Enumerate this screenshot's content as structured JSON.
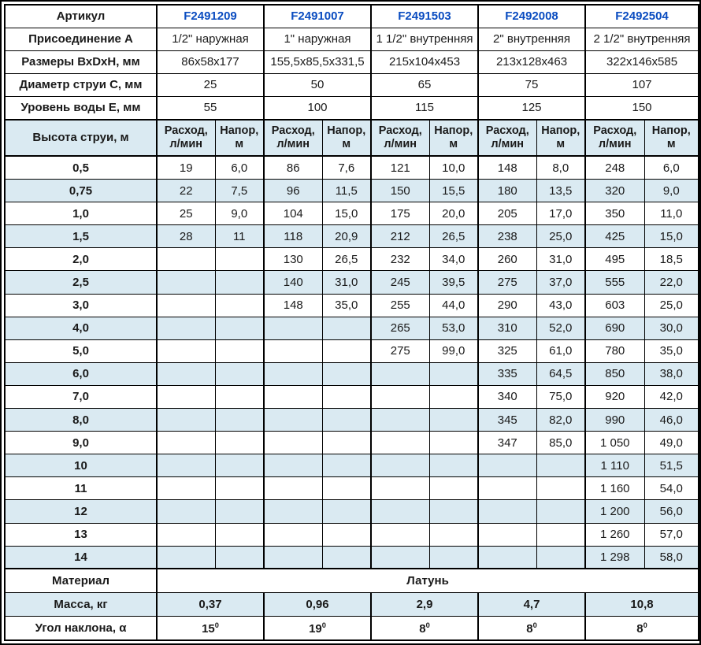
{
  "colors": {
    "accent_blue": "#0a4cc0",
    "row_alt_blue": "#daeaf2",
    "border_black": "#000000"
  },
  "table": {
    "info_rows": [
      {
        "name": "article",
        "label": "Артикул",
        "type": "article",
        "values": [
          "F2491209",
          "F2491007",
          "F2491503",
          "F2492008",
          "F2492504"
        ]
      },
      {
        "name": "connection",
        "label": "Присоединение А",
        "type": "plain",
        "values": [
          "1/2\" наружная",
          "1\" наружная",
          "1 1/2\" внутренняя",
          "2\" внутренняя",
          "2 1/2\" внутренняя"
        ]
      },
      {
        "name": "dimensions",
        "label": "Размеры ВхDхН, мм",
        "type": "plain",
        "values": [
          "86x58x177",
          "155,5x85,5x331,5",
          "215x104x453",
          "213x128x463",
          "322x146x585"
        ]
      },
      {
        "name": "jet-diameter",
        "label": "Диаметр струи С, мм",
        "type": "plain",
        "values": [
          "25",
          "50",
          "65",
          "75",
          "107"
        ]
      },
      {
        "name": "water-level",
        "label": "Уровень воды Е, мм",
        "type": "plain",
        "values": [
          "55",
          "100",
          "115",
          "125",
          "150"
        ]
      }
    ],
    "jet_header": {
      "label": "Высота струи, м",
      "col_flow": "Расход,\nл/мин",
      "col_head": "Напор,\nм"
    },
    "jet_rows": [
      {
        "h": "0,5",
        "c": [
          "19",
          "6,0",
          "86",
          "7,6",
          "121",
          "10,0",
          "148",
          "8,0",
          "248",
          "6,0"
        ]
      },
      {
        "h": "0,75",
        "c": [
          "22",
          "7,5",
          "96",
          "11,5",
          "150",
          "15,5",
          "180",
          "13,5",
          "320",
          "9,0"
        ]
      },
      {
        "h": "1,0",
        "c": [
          "25",
          "9,0",
          "104",
          "15,0",
          "175",
          "20,0",
          "205",
          "17,0",
          "350",
          "11,0"
        ]
      },
      {
        "h": "1,5",
        "c": [
          "28",
          "11",
          "118",
          "20,9",
          "212",
          "26,5",
          "238",
          "25,0",
          "425",
          "15,0"
        ]
      },
      {
        "h": "2,0",
        "c": [
          "",
          "",
          "130",
          "26,5",
          "232",
          "34,0",
          "260",
          "31,0",
          "495",
          "18,5"
        ]
      },
      {
        "h": "2,5",
        "c": [
          "",
          "",
          "140",
          "31,0",
          "245",
          "39,5",
          "275",
          "37,0",
          "555",
          "22,0"
        ]
      },
      {
        "h": "3,0",
        "c": [
          "",
          "",
          "148",
          "35,0",
          "255",
          "44,0",
          "290",
          "43,0",
          "603",
          "25,0"
        ]
      },
      {
        "h": "4,0",
        "c": [
          "",
          "",
          "",
          "",
          "265",
          "53,0",
          "310",
          "52,0",
          "690",
          "30,0"
        ]
      },
      {
        "h": "5,0",
        "c": [
          "",
          "",
          "",
          "",
          "275",
          "99,0",
          "325",
          "61,0",
          "780",
          "35,0"
        ]
      },
      {
        "h": "6,0",
        "c": [
          "",
          "",
          "",
          "",
          "",
          "",
          "335",
          "64,5",
          "850",
          "38,0"
        ]
      },
      {
        "h": "7,0",
        "c": [
          "",
          "",
          "",
          "",
          "",
          "",
          "340",
          "75,0",
          "920",
          "42,0"
        ]
      },
      {
        "h": "8,0",
        "c": [
          "",
          "",
          "",
          "",
          "",
          "",
          "345",
          "82,0",
          "990",
          "46,0"
        ]
      },
      {
        "h": "9,0",
        "c": [
          "",
          "",
          "",
          "",
          "",
          "",
          "347",
          "85,0",
          "1 050",
          "49,0"
        ]
      },
      {
        "h": "10",
        "c": [
          "",
          "",
          "",
          "",
          "",
          "",
          "",
          "",
          "1 110",
          "51,5"
        ]
      },
      {
        "h": "11",
        "c": [
          "",
          "",
          "",
          "",
          "",
          "",
          "",
          "",
          "1 160",
          "54,0"
        ]
      },
      {
        "h": "12",
        "c": [
          "",
          "",
          "",
          "",
          "",
          "",
          "",
          "",
          "1 200",
          "56,0"
        ]
      },
      {
        "h": "13",
        "c": [
          "",
          "",
          "",
          "",
          "",
          "",
          "",
          "",
          "1 260",
          "57,0"
        ]
      },
      {
        "h": "14",
        "c": [
          "",
          "",
          "",
          "",
          "",
          "",
          "",
          "",
          "1 298",
          "58,0"
        ]
      }
    ],
    "material": {
      "label": "Материал",
      "value": "Латунь"
    },
    "mass": {
      "label": "Масса, кг",
      "values": [
        "0,37",
        "0,96",
        "2,9",
        "4,7",
        "10,8"
      ]
    },
    "angle": {
      "label": "Угол наклона, α",
      "values": [
        {
          "v": "15",
          "s": "0"
        },
        {
          "v": "19",
          "s": "0"
        },
        {
          "v": "8",
          "s": "0"
        },
        {
          "v": "8",
          "s": "0"
        },
        {
          "v": "8",
          "s": "0"
        }
      ]
    }
  }
}
